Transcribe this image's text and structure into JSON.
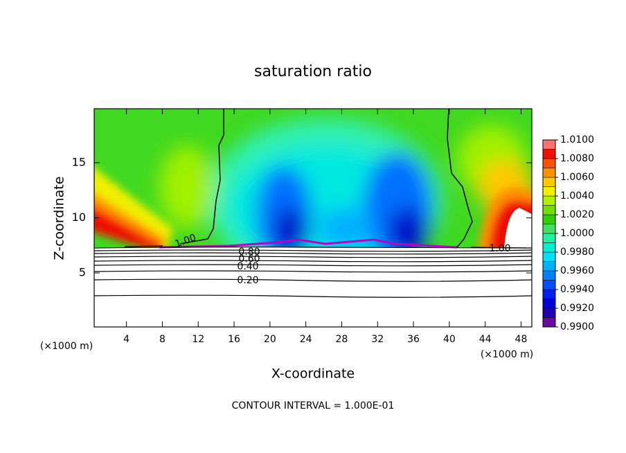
{
  "chart_data": {
    "type": "contour",
    "title": "saturation ratio",
    "x_label": "X-coordinate",
    "y_label": "Z-coordinate",
    "axis_unit_labels": [
      "(×1000 m)",
      "(×1000 m)"
    ],
    "footer": "CONTOUR INTERVAL = 1.000E-01",
    "xlim": [
      0.4,
      49.2
    ],
    "xticks": [
      4,
      8,
      12,
      16,
      20,
      24,
      28,
      32,
      36,
      40,
      44,
      48
    ],
    "ylim": [
      0.1,
      19.9
    ],
    "yticks": [
      5,
      10,
      15
    ],
    "contour_labels": [
      "1.00",
      "1.00",
      "0.80",
      "0.60",
      "0.40",
      "0.20"
    ],
    "colorbar": {
      "clim": [
        0.99,
        1.01
      ],
      "levels": [
        0.99,
        0.991,
        0.992,
        0.993,
        0.994,
        0.995,
        0.996,
        0.997,
        0.998,
        0.999,
        1.0,
        1.001,
        1.002,
        1.003,
        1.004,
        1.005,
        1.006,
        1.007,
        1.008,
        1.009,
        1.01
      ],
      "colors": [
        "#6a0aa0",
        "#2000b0",
        "#0000d8",
        "#0020f0",
        "#0050ff",
        "#0080ff",
        "#00b0ff",
        "#00e0ff",
        "#00f0d0",
        "#20f0a0",
        "#40e060",
        "#30d000",
        "#70e000",
        "#b0f000",
        "#f0f000",
        "#ffc800",
        "#ff9000",
        "#ff5000",
        "#f01000",
        "#ff7070"
      ],
      "ticks": [
        {
          "value": 0.99,
          "label": "0.9900"
        },
        {
          "value": 0.992,
          "label": "0.9920"
        },
        {
          "value": 0.994,
          "label": "0.9940"
        },
        {
          "value": 0.996,
          "label": "0.9960"
        },
        {
          "value": 0.998,
          "label": "0.9980"
        },
        {
          "value": 1.0,
          "label": "1.0000"
        },
        {
          "value": 1.002,
          "label": "1.0020"
        },
        {
          "value": 1.004,
          "label": "1.0040"
        },
        {
          "value": 1.006,
          "label": "1.0060"
        },
        {
          "value": 1.008,
          "label": "1.0080"
        },
        {
          "value": 1.01,
          "label": "1.0100"
        }
      ]
    }
  }
}
